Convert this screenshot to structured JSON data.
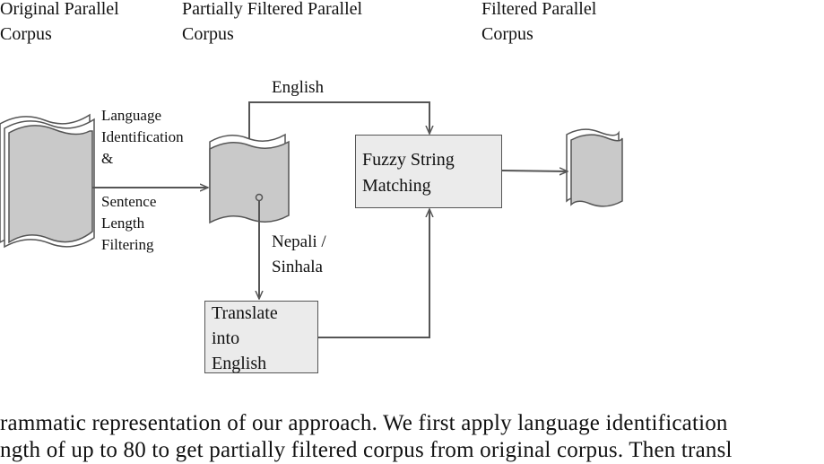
{
  "headers": {
    "original": [
      "Original Parallel",
      "Corpus"
    ],
    "partial": [
      "Partially Filtered Parallel",
      "Corpus"
    ],
    "filtered": [
      "Filtered Parallel",
      "Corpus"
    ]
  },
  "edges": {
    "lang_id": [
      "Language",
      "Identification",
      "&"
    ],
    "length_filter": [
      "Sentence",
      "Length",
      "Filtering"
    ],
    "english": "English",
    "nepali_sinhala": [
      "Nepali /",
      "Sinhala"
    ]
  },
  "boxes": {
    "fuzzy": [
      "Fuzzy String",
      "Matching"
    ],
    "translate": [
      "Translate",
      "into",
      "English"
    ]
  },
  "caption": [
    "rammatic representation of our approach.  We first apply language identification",
    "ngth of up to 80 to get partially filtered corpus from original corpus.  Then transl"
  ]
}
